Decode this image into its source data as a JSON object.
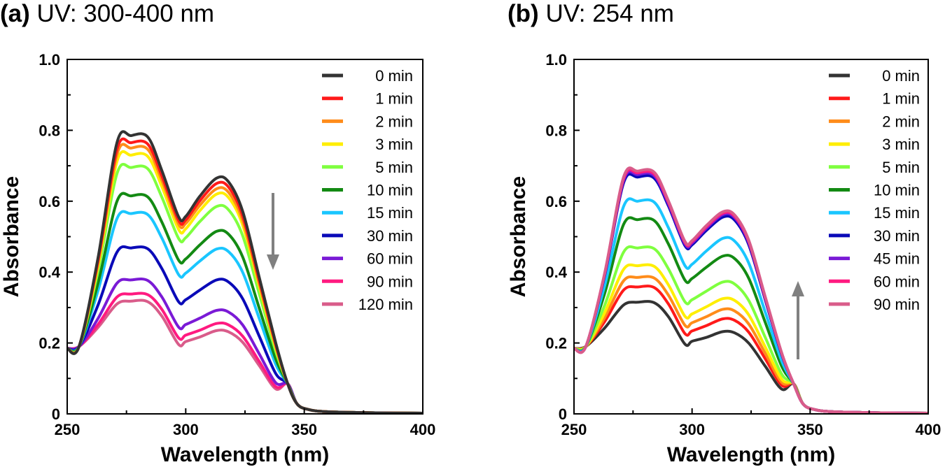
{
  "panel_a_label": "(a)",
  "panel_b_label": "(b)",
  "chart_data": [
    {
      "type": "line",
      "panel": "(a)",
      "title": "UV: 300-400 nm",
      "xlabel": "Wavelength (nm)",
      "ylabel": "Absorbance",
      "xlim": [
        250,
        400
      ],
      "ylim": [
        0,
        1.0
      ],
      "xticks": [
        "250",
        "300",
        "350",
        "400"
      ],
      "yticks": [
        "0",
        "0.2",
        "0.4",
        "0.6",
        "0.8",
        "1.0"
      ],
      "trend": "down",
      "legend_position": "top-right",
      "series": [
        {
          "name": "0 min",
          "color": "#333333",
          "peak1": 0.785,
          "valley": 0.545,
          "peak2": 0.665
        },
        {
          "name": "1 min",
          "color": "#ff1a1a",
          "peak1": 0.765,
          "valley": 0.535,
          "peak2": 0.65
        },
        {
          "name": "2 min",
          "color": "#ff8c1a",
          "peak1": 0.75,
          "valley": 0.525,
          "peak2": 0.635
        },
        {
          "name": "3 min",
          "color": "#ffee00",
          "peak1": 0.73,
          "valley": 0.51,
          "peak2": 0.62
        },
        {
          "name": "5 min",
          "color": "#7fff3f",
          "peak1": 0.695,
          "valley": 0.485,
          "peak2": 0.585
        },
        {
          "name": "10 min",
          "color": "#138a13",
          "peak1": 0.615,
          "valley": 0.425,
          "peak2": 0.515
        },
        {
          "name": "15 min",
          "color": "#1ac6ff",
          "peak1": 0.565,
          "valley": 0.385,
          "peak2": 0.465
        },
        {
          "name": "30 min",
          "color": "#0a0ab8",
          "peak1": 0.468,
          "valley": 0.31,
          "peak2": 0.378
        },
        {
          "name": "60 min",
          "color": "#7a1ad6",
          "peak1": 0.378,
          "valley": 0.24,
          "peak2": 0.292
        },
        {
          "name": "90 min",
          "color": "#ff1a80",
          "peak1": 0.338,
          "valley": 0.21,
          "peak2": 0.255
        },
        {
          "name": "120 min",
          "color": "#d95c8a",
          "peak1": 0.318,
          "valley": 0.192,
          "peak2": 0.235
        }
      ]
    },
    {
      "type": "line",
      "panel": "(b)",
      "title": "UV: 254 nm",
      "xlabel": "Wavelength (nm)",
      "ylabel": "Absorbance",
      "xlim": [
        250,
        400
      ],
      "ylim": [
        0,
        1.0
      ],
      "xticks": [
        "250",
        "300",
        "350",
        "400"
      ],
      "yticks": [
        "0",
        "0.2",
        "0.4",
        "0.6",
        "0.8",
        "1.0"
      ],
      "trend": "up",
      "legend_position": "top-right",
      "series": [
        {
          "name": "0 min",
          "color": "#333333",
          "peak1": 0.315,
          "valley": 0.193,
          "peak2": 0.232
        },
        {
          "name": "1 min",
          "color": "#ff1a1a",
          "peak1": 0.358,
          "valley": 0.222,
          "peak2": 0.268
        },
        {
          "name": "2 min",
          "color": "#ff8c1a",
          "peak1": 0.385,
          "valley": 0.245,
          "peak2": 0.295
        },
        {
          "name": "3 min",
          "color": "#ffee00",
          "peak1": 0.418,
          "valley": 0.27,
          "peak2": 0.325
        },
        {
          "name": "5 min",
          "color": "#7fff3f",
          "peak1": 0.468,
          "valley": 0.31,
          "peak2": 0.372
        },
        {
          "name": "10 min",
          "color": "#138a13",
          "peak1": 0.548,
          "valley": 0.37,
          "peak2": 0.445
        },
        {
          "name": "15 min",
          "color": "#1ac6ff",
          "peak1": 0.6,
          "valley": 0.41,
          "peak2": 0.495
        },
        {
          "name": "30 min",
          "color": "#0a0ab8",
          "peak1": 0.668,
          "valley": 0.465,
          "peak2": 0.555
        },
        {
          "name": "45 min",
          "color": "#7a1ad6",
          "peak1": 0.675,
          "valley": 0.47,
          "peak2": 0.562
        },
        {
          "name": "60 min",
          "color": "#ff1a80",
          "peak1": 0.68,
          "valley": 0.474,
          "peak2": 0.566
        },
        {
          "name": "90 min",
          "color": "#d95c8a",
          "peak1": 0.685,
          "valley": 0.477,
          "peak2": 0.57
        }
      ]
    }
  ]
}
